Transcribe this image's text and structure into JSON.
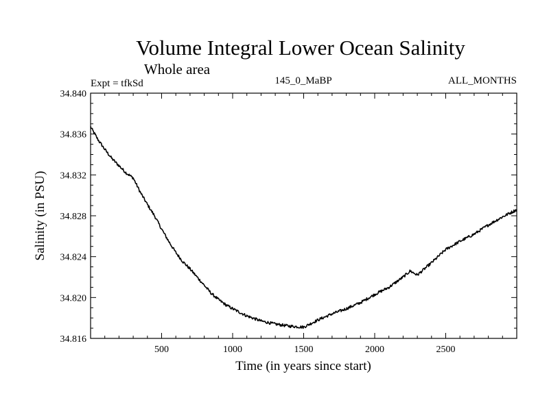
{
  "chart_data": {
    "type": "line",
    "title": "Volume Integral Lower Ocean Salinity",
    "subtitle": "Whole area",
    "annotations": {
      "left": "Expt = tfkSd",
      "center": "145_0_MaBP",
      "right": "ALL_MONTHS"
    },
    "xlabel": "Time (in years since start)",
    "ylabel": "Salinity (in PSU)",
    "xlim": [
      0,
      3000
    ],
    "ylim": [
      34.816,
      34.84
    ],
    "xticks": [
      500,
      1000,
      1500,
      2000,
      2500
    ],
    "xtick_labels": [
      "500",
      "1000",
      "1500",
      "2000",
      "2500"
    ],
    "yticks": [
      34.816,
      34.82,
      34.824,
      34.828,
      34.832,
      34.836,
      34.84
    ],
    "ytick_labels": [
      "34.816",
      "34.820",
      "34.824",
      "34.828",
      "34.832",
      "34.836",
      "34.840"
    ],
    "grid": false,
    "series": [
      {
        "name": "Volume integral lower ocean salinity",
        "x": [
          0,
          50,
          100,
          150,
          200,
          250,
          300,
          350,
          400,
          450,
          500,
          550,
          600,
          650,
          700,
          750,
          800,
          850,
          900,
          950,
          1000,
          1100,
          1200,
          1300,
          1400,
          1500,
          1600,
          1700,
          1800,
          1900,
          2000,
          2100,
          2200,
          2250,
          2300,
          2400,
          2500,
          2600,
          2700,
          2800,
          2900,
          3000
        ],
        "values": [
          34.8367,
          34.8355,
          34.8345,
          34.8336,
          34.8329,
          34.8322,
          34.8317,
          34.8303,
          34.8291,
          34.828,
          34.8267,
          34.8255,
          34.8244,
          34.8235,
          34.8228,
          34.822,
          34.8212,
          34.8204,
          34.8198,
          34.8193,
          34.8189,
          34.8182,
          34.8177,
          34.8174,
          34.8172,
          34.8171,
          34.8178,
          34.8184,
          34.8189,
          34.8195,
          34.8203,
          34.821,
          34.822,
          34.8226,
          34.8222,
          34.8234,
          34.8247,
          34.8255,
          34.8262,
          34.8271,
          34.8279,
          34.8286
        ]
      }
    ]
  }
}
